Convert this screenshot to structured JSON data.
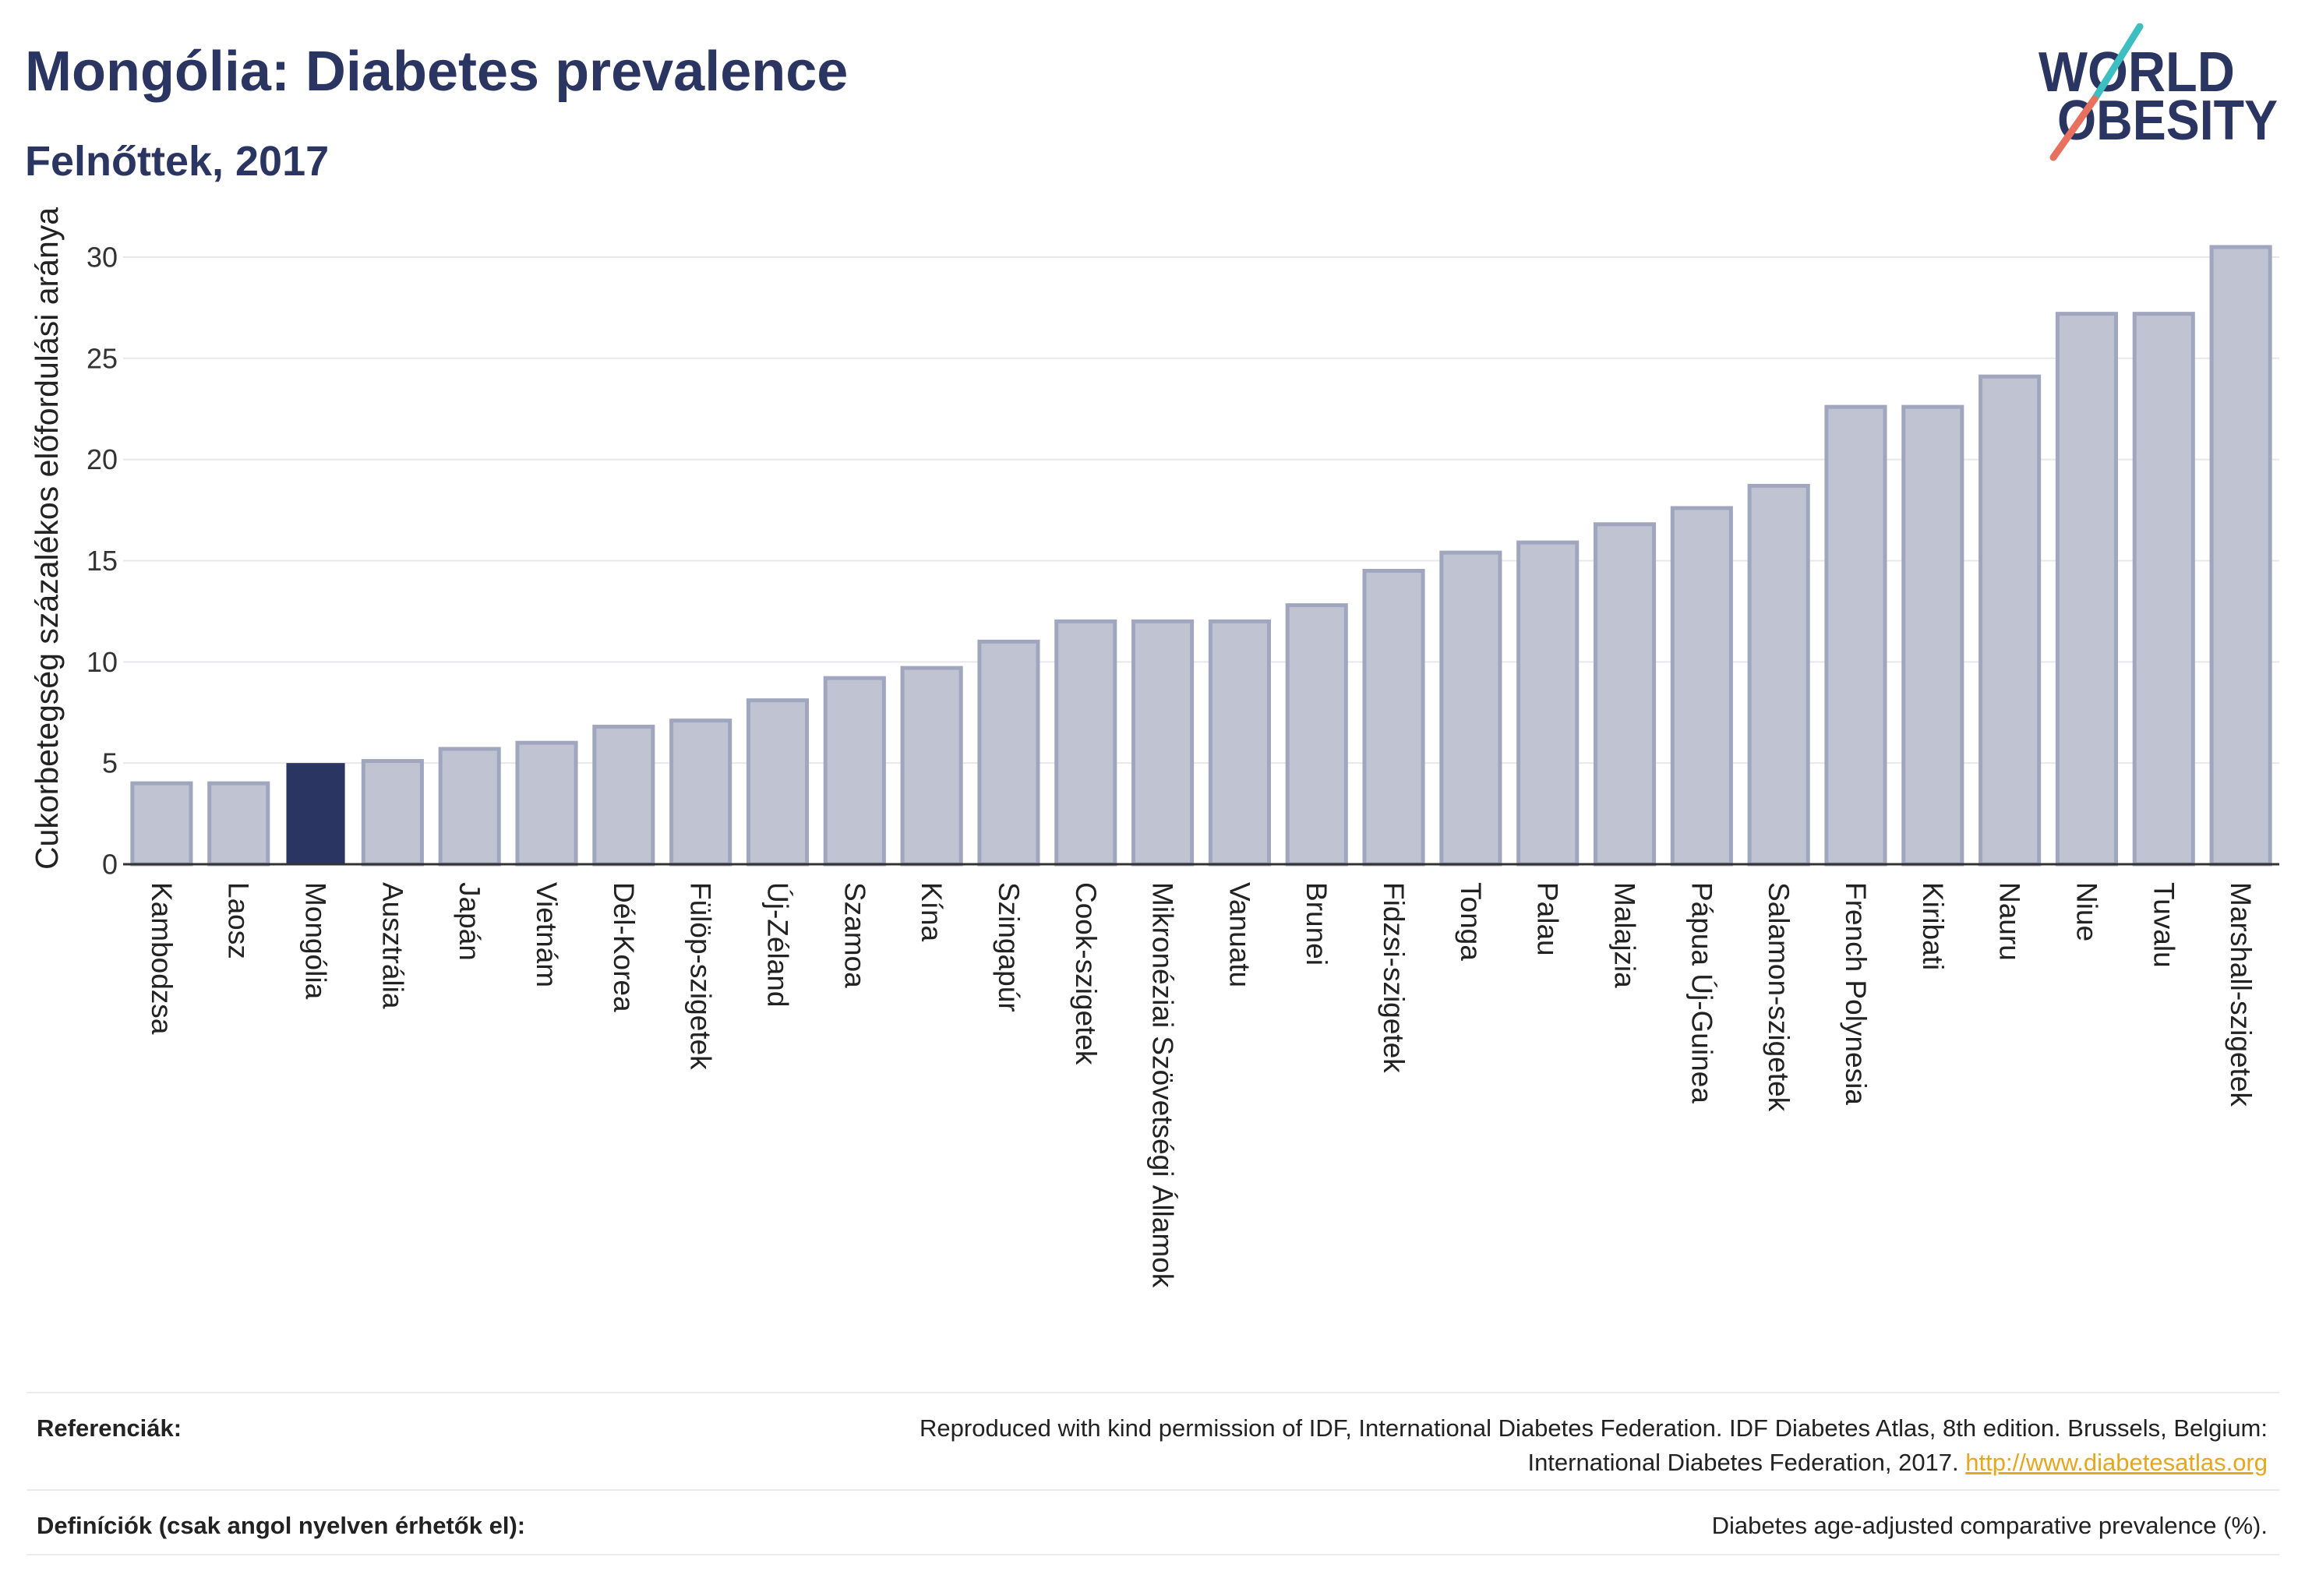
{
  "chart_data": {
    "type": "bar",
    "title": "Mongólia: Diabetes prevalence",
    "subtitle": "Felnőttek, 2017",
    "xlabel": "",
    "ylabel": "Cukorbetegség százalékos előfordulási aránya",
    "categories": [
      "Kambodzsa",
      "Laosz",
      "Mongólia",
      "Ausztrália",
      "Japán",
      "Vietnám",
      "Dél-Korea",
      "Fülöp-szigetek",
      "Új-Zéland",
      "Szamoa",
      "Kína",
      "Szingapúr",
      "Cook-szigetek",
      "Mikronéziai Szövetségi Államok",
      "Vanuatu",
      "Brunei",
      "Fidzsi-szigetek",
      "Tonga",
      "Palau",
      "Malajzia",
      "Pápua Új-Guinea",
      "Salamon-szigetek",
      "French Polynesia",
      "Kiribati",
      "Nauru",
      "Niue",
      "Tuvalu",
      "Marshall-szigetek"
    ],
    "values": [
      4.0,
      4.0,
      5.0,
      5.1,
      5.7,
      6.0,
      6.8,
      7.1,
      8.1,
      9.2,
      9.7,
      11.0,
      12.0,
      12.0,
      12.0,
      12.8,
      14.5,
      15.4,
      15.9,
      16.8,
      17.6,
      18.7,
      22.6,
      22.6,
      24.1,
      27.2,
      27.2,
      30.5
    ],
    "highlight": "Mongólia",
    "ylim": [
      0,
      31.5
    ],
    "yticks": [
      0,
      5,
      10,
      15,
      20,
      25,
      30
    ],
    "grid": true,
    "legend": "none",
    "colors": {
      "bar": "#c0c4d2",
      "bar_border": "#a0a6be",
      "highlight": "#2b3561",
      "grid": "#e8e8ec",
      "axis": "#333333",
      "title": "#2b3561"
    }
  },
  "logo": {
    "line1": "WORLD",
    "line2": "OBESITY",
    "colors": {
      "text": "#2b3561",
      "slash_top": "#3dbfc2",
      "slash_bottom": "#e8705f"
    }
  },
  "footer": {
    "references": {
      "label": "Referenciák:",
      "line1": "Reproduced with kind permission of IDF, International Diabetes Federation. IDF Diabetes Atlas, 8th edition. Brussels, Belgium:",
      "line2": "International Diabetes Federation, 2017.",
      "link": "http://www.diabetesatlas.org"
    },
    "definitions": {
      "label": "Definíciók (csak angol nyelven érhetők el):",
      "text": "Diabetes age-adjusted comparative prevalence (%)."
    },
    "link_color": "#e5a620"
  }
}
